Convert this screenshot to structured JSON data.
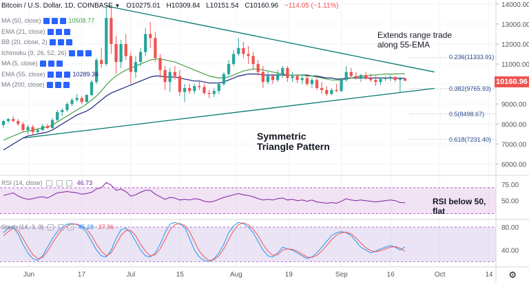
{
  "header": {
    "title": "Bitcoin / U.S. Dollar",
    "interval": "1D",
    "exchange": "COINBASE",
    "open": "O10275.01",
    "high": "H10309.84",
    "low": "L10151.54",
    "close": "C10160.96",
    "change": "−114.05 (−1.11%)"
  },
  "legend": [
    {
      "label": "MA (50, close)",
      "value": "10508.77",
      "has_controls": true
    },
    {
      "label": "EMA (21, close)",
      "value": "",
      "has_controls": true
    },
    {
      "label": "BB (20, close, 2)",
      "value": "",
      "has_controls": true
    },
    {
      "label": "Ichimoku (9, 26, 52, 26)",
      "value": "",
      "has_controls": true
    },
    {
      "label": "MA (5, close)",
      "value": "",
      "has_controls": true
    },
    {
      "label": "EMA (55, close)",
      "value": "10289.36",
      "has_controls": true
    },
    {
      "label": "MA (200, close)",
      "value": "",
      "has_controls": true
    }
  ],
  "rsi_legend": {
    "label": "RSI (14, close)",
    "value": "46.73"
  },
  "stoch_legend": {
    "label": "Stoch (14, 3, 3)",
    "value_k": "45.28",
    "value_d": "37.96"
  },
  "last_price_tag": "10160.96",
  "annotations": {
    "range_note": [
      "Extends range trade",
      "along 55-EMA"
    ],
    "pattern_note": [
      "Symmetric",
      "Triangle Pattern"
    ],
    "rsi_note": [
      "RSI below 50,",
      "flat"
    ]
  },
  "fib_levels": [
    {
      "label": "0.236(11333.91)",
      "price": 11333.91
    },
    {
      "label": "0.382(9765.93)",
      "price": 9765.93
    },
    {
      "label": "0.5(8498.67)",
      "price": 8498.67
    },
    {
      "label": "0.618(7231.40)",
      "price": 7231.4
    }
  ],
  "colors": {
    "up": "#26a69a",
    "down": "#ef5350",
    "ema55": "#1a237e",
    "ma50": "#43a047",
    "trendline": "#00796b",
    "rsi_line": "#7b1fa2",
    "rsi_band": "#e1bee7",
    "stoch_k": "#2196f3",
    "stoch_d": "#ef5350",
    "stoch_band": "#d1c4e9",
    "fib": "#2a4c8e",
    "price_tag": "#ef5350"
  },
  "chart_data": [
    {
      "type": "candlestick",
      "title": "Bitcoin / U.S. Dollar, 1D, COINBASE",
      "x_tick_labels": [
        "Jun",
        "17",
        "Jul",
        "15",
        "Aug",
        "19",
        "Sep",
        "16",
        "Oct",
        "14"
      ],
      "y_tick_labels": [
        "14000.00",
        "13000.00",
        "12000.00",
        "11000.00",
        "10000.00",
        "9000.00",
        "8000.00",
        "7000.00",
        "6000.00"
      ],
      "ylim": [
        5500,
        14200
      ],
      "candles": [
        {
          "o": 7950,
          "h": 8200,
          "l": 7800,
          "c": 8150
        },
        {
          "o": 8150,
          "h": 8300,
          "l": 8050,
          "c": 8250
        },
        {
          "o": 8250,
          "h": 8400,
          "l": 8100,
          "c": 8150
        },
        {
          "o": 8150,
          "h": 8250,
          "l": 7900,
          "c": 8000
        },
        {
          "o": 8000,
          "h": 8100,
          "l": 7600,
          "c": 7700
        },
        {
          "o": 7700,
          "h": 7950,
          "l": 7500,
          "c": 7850
        },
        {
          "o": 7850,
          "h": 7950,
          "l": 7450,
          "c": 7600
        },
        {
          "o": 7600,
          "h": 7800,
          "l": 7500,
          "c": 7700
        },
        {
          "o": 7700,
          "h": 8000,
          "l": 7650,
          "c": 7900
        },
        {
          "o": 7900,
          "h": 8000,
          "l": 7750,
          "c": 7800
        },
        {
          "o": 7800,
          "h": 8300,
          "l": 7750,
          "c": 8200
        },
        {
          "o": 8200,
          "h": 8700,
          "l": 8100,
          "c": 8600
        },
        {
          "o": 8600,
          "h": 8800,
          "l": 8400,
          "c": 8700
        },
        {
          "o": 8700,
          "h": 9100,
          "l": 8600,
          "c": 9000
        },
        {
          "o": 9000,
          "h": 9300,
          "l": 8900,
          "c": 9200
        },
        {
          "o": 9200,
          "h": 9500,
          "l": 9100,
          "c": 9300
        },
        {
          "o": 9300,
          "h": 9400,
          "l": 9000,
          "c": 9100
        },
        {
          "o": 9100,
          "h": 9500,
          "l": 9050,
          "c": 9450
        },
        {
          "o": 9450,
          "h": 10200,
          "l": 9400,
          "c": 10100
        },
        {
          "o": 10100,
          "h": 11300,
          "l": 10000,
          "c": 11200
        },
        {
          "o": 11200,
          "h": 11800,
          "l": 10800,
          "c": 11000
        },
        {
          "o": 11000,
          "h": 13800,
          "l": 10900,
          "c": 13300
        },
        {
          "o": 13300,
          "h": 13900,
          "l": 11500,
          "c": 12000
        },
        {
          "o": 12000,
          "h": 12400,
          "l": 10500,
          "c": 11100
        },
        {
          "o": 11100,
          "h": 12200,
          "l": 10800,
          "c": 12000
        },
        {
          "o": 12000,
          "h": 12500,
          "l": 11200,
          "c": 11400
        },
        {
          "o": 11400,
          "h": 11600,
          "l": 10000,
          "c": 10600
        },
        {
          "o": 10600,
          "h": 11400,
          "l": 10300,
          "c": 11100
        },
        {
          "o": 11100,
          "h": 11800,
          "l": 10900,
          "c": 11600
        },
        {
          "o": 11600,
          "h": 12800,
          "l": 11400,
          "c": 12500
        },
        {
          "o": 12500,
          "h": 13100,
          "l": 11800,
          "c": 12300
        },
        {
          "o": 12300,
          "h": 12600,
          "l": 11100,
          "c": 11300
        },
        {
          "o": 11300,
          "h": 11500,
          "l": 10300,
          "c": 10700
        },
        {
          "o": 10700,
          "h": 10900,
          "l": 9700,
          "c": 10100
        },
        {
          "o": 10100,
          "h": 10800,
          "l": 9600,
          "c": 10600
        },
        {
          "o": 10600,
          "h": 10900,
          "l": 10200,
          "c": 10400
        },
        {
          "o": 10400,
          "h": 10700,
          "l": 9400,
          "c": 9600
        },
        {
          "o": 9600,
          "h": 10000,
          "l": 9100,
          "c": 9800
        },
        {
          "o": 9800,
          "h": 10000,
          "l": 9500,
          "c": 9650
        },
        {
          "o": 9650,
          "h": 10000,
          "l": 9500,
          "c": 9900
        },
        {
          "o": 9900,
          "h": 10200,
          "l": 9700,
          "c": 9850
        },
        {
          "o": 9850,
          "h": 10000,
          "l": 9450,
          "c": 9550
        },
        {
          "o": 9550,
          "h": 9700,
          "l": 9300,
          "c": 9500
        },
        {
          "o": 9500,
          "h": 9800,
          "l": 9350,
          "c": 9650
        },
        {
          "o": 9650,
          "h": 10100,
          "l": 9500,
          "c": 10000
        },
        {
          "o": 10000,
          "h": 10600,
          "l": 9900,
          "c": 10500
        },
        {
          "o": 10500,
          "h": 11200,
          "l": 10400,
          "c": 11000
        },
        {
          "o": 11000,
          "h": 11700,
          "l": 10900,
          "c": 11500
        },
        {
          "o": 11500,
          "h": 12300,
          "l": 11400,
          "c": 11800
        },
        {
          "o": 11800,
          "h": 12100,
          "l": 11300,
          "c": 11500
        },
        {
          "o": 11500,
          "h": 11900,
          "l": 11000,
          "c": 11400
        },
        {
          "o": 11400,
          "h": 11600,
          "l": 10700,
          "c": 11000
        },
        {
          "o": 11000,
          "h": 11200,
          "l": 10400,
          "c": 10600
        },
        {
          "o": 10600,
          "h": 10900,
          "l": 9800,
          "c": 10100
        },
        {
          "o": 10100,
          "h": 10600,
          "l": 10000,
          "c": 10400
        },
        {
          "o": 10400,
          "h": 10500,
          "l": 10000,
          "c": 10200
        },
        {
          "o": 10200,
          "h": 10700,
          "l": 10100,
          "c": 10500
        },
        {
          "o": 10500,
          "h": 10900,
          "l": 10300,
          "c": 10800
        },
        {
          "o": 10800,
          "h": 10900,
          "l": 10100,
          "c": 10300
        },
        {
          "o": 10300,
          "h": 10600,
          "l": 10100,
          "c": 10400
        },
        {
          "o": 10400,
          "h": 10500,
          "l": 10050,
          "c": 10200
        },
        {
          "o": 10200,
          "h": 10500,
          "l": 10000,
          "c": 10300
        },
        {
          "o": 10300,
          "h": 10400,
          "l": 9900,
          "c": 10000
        },
        {
          "o": 10000,
          "h": 10300,
          "l": 9800,
          "c": 10200
        },
        {
          "o": 10200,
          "h": 10300,
          "l": 9700,
          "c": 9800
        },
        {
          "o": 9800,
          "h": 10100,
          "l": 9500,
          "c": 9700
        },
        {
          "o": 9700,
          "h": 9900,
          "l": 9400,
          "c": 9500
        },
        {
          "o": 9500,
          "h": 9800,
          "l": 9450,
          "c": 9700
        },
        {
          "o": 9700,
          "h": 10000,
          "l": 9600,
          "c": 9650
        },
        {
          "o": 9650,
          "h": 10300,
          "l": 9600,
          "c": 10200
        },
        {
          "o": 10200,
          "h": 10900,
          "l": 10100,
          "c": 10600
        },
        {
          "o": 10600,
          "h": 10800,
          "l": 10300,
          "c": 10400
        },
        {
          "o": 10400,
          "h": 10600,
          "l": 10200,
          "c": 10300
        },
        {
          "o": 10300,
          "h": 10500,
          "l": 10100,
          "c": 10450
        },
        {
          "o": 10450,
          "h": 10600,
          "l": 10200,
          "c": 10300
        },
        {
          "o": 10300,
          "h": 10500,
          "l": 10100,
          "c": 10200
        },
        {
          "o": 10200,
          "h": 10400,
          "l": 9900,
          "c": 10100
        },
        {
          "o": 10100,
          "h": 10300,
          "l": 9950,
          "c": 10250
        },
        {
          "o": 10250,
          "h": 10400,
          "l": 10150,
          "c": 10300
        },
        {
          "o": 10300,
          "h": 10450,
          "l": 10150,
          "c": 10350
        },
        {
          "o": 10350,
          "h": 10400,
          "l": 10100,
          "c": 10200
        },
        {
          "o": 10200,
          "h": 10350,
          "l": 9600,
          "c": 10275
        },
        {
          "o": 10275,
          "h": 10310,
          "l": 10150,
          "c": 10160
        }
      ],
      "series": [
        {
          "values": [
            6700,
            6850,
            7000,
            7150,
            7300,
            7400,
            7450,
            7500,
            7550,
            7600,
            7700,
            7850,
            8000,
            8150,
            8300,
            8450,
            8550,
            8650,
            8800,
            9000,
            9200,
            9400,
            9550,
            9650,
            9750,
            9850,
            9950,
            10050,
            10150,
            10250,
            10350,
            10400,
            10400,
            10350,
            10350,
            10350,
            10300,
            10250,
            10200,
            10150,
            10150,
            10100,
            10050,
            10050,
            10050,
            10100,
            10200,
            10300,
            10400,
            10450,
            10500,
            10500,
            10500,
            10450,
            10450,
            10450,
            10450,
            10450,
            10450,
            10450,
            10450,
            10450,
            10450,
            10400,
            10400,
            10350,
            10300,
            10300,
            10250,
            10250,
            10300,
            10300,
            10300,
            10300,
            10300,
            10300,
            10300,
            10300,
            10300,
            10300,
            10290,
            10290,
            10289
          ]
        },
        {
          "values": [
            7200,
            7300,
            7400,
            7500,
            7600,
            7650,
            7700,
            7750,
            7800,
            7850,
            7950,
            8100,
            8250,
            8400,
            8550,
            8700,
            8850,
            9000,
            9200,
            9400,
            9650,
            9950,
            10200,
            10400,
            10550,
            10700,
            10800,
            10900,
            11000,
            11100,
            11200,
            11250,
            11250,
            11200,
            11150,
            11100,
            11000,
            10900,
            10800,
            10700,
            10600,
            10500,
            10400,
            10350,
            10300,
            10300,
            10350,
            10450,
            10550,
            10650,
            10700,
            10750,
            10750,
            10700,
            10650,
            10600,
            10550,
            10500,
            10450,
            10450,
            10450,
            10450,
            10400,
            10400,
            10350,
            10300,
            10250,
            10200,
            10200,
            10200,
            10250,
            10300,
            10350,
            10400,
            10400,
            10450,
            10450,
            10480,
            10500,
            10500,
            10505,
            10508,
            10509
          ]
        }
      ],
      "trendlines": [
        {
          "from": [
            21,
            13900
          ],
          "to": [
            88,
            10600
          ]
        },
        {
          "from": [
            4,
            7300
          ],
          "to": [
            88,
            9780
          ]
        }
      ]
    },
    {
      "type": "line",
      "title": "RSI (14, close)",
      "y_tick_labels": [
        "75.00",
        "50.00"
      ],
      "ylim": [
        22,
        88
      ],
      "band": [
        30,
        70
      ],
      "series": [
        {
          "values": [
            58,
            60,
            62,
            57,
            54,
            52,
            53,
            55,
            56,
            54,
            58,
            62,
            63,
            64,
            63,
            62,
            60,
            61,
            63,
            68,
            70,
            78,
            74,
            66,
            68,
            64,
            57,
            59,
            63,
            66,
            66,
            60,
            56,
            52,
            55,
            54,
            51,
            52,
            51,
            53,
            52,
            49,
            48,
            49,
            52,
            55,
            57,
            59,
            61,
            59,
            58,
            56,
            53,
            51,
            52,
            51,
            53,
            54,
            51,
            52,
            50,
            51,
            49,
            51,
            48,
            47,
            46,
            47,
            46,
            49,
            53,
            51,
            50,
            51,
            50,
            49,
            48,
            49,
            50,
            51,
            50,
            47,
            46.73
          ]
        }
      ]
    },
    {
      "type": "line",
      "title": "Stoch (14, 3, 3)",
      "y_tick_labels": [
        "80.00",
        "40.00"
      ],
      "ylim": [
        12,
        92
      ],
      "band": [
        20,
        80
      ],
      "series": [
        {
          "name": "%K",
          "values": [
            70,
            78,
            80,
            68,
            50,
            35,
            25,
            22,
            30,
            45,
            60,
            72,
            80,
            85,
            86,
            84,
            80,
            70,
            55,
            40,
            30,
            28,
            40,
            60,
            75,
            78,
            70,
            55,
            40,
            30,
            28,
            35,
            50,
            70,
            85,
            88,
            85,
            80,
            60,
            40,
            28,
            22,
            20,
            25,
            35,
            50,
            70,
            82,
            88,
            86,
            80,
            70,
            55,
            40,
            30,
            28,
            35,
            45,
            42,
            40,
            35,
            30,
            25,
            28,
            35,
            45,
            55,
            65,
            70,
            72,
            70,
            65,
            55,
            45,
            40,
            35,
            38,
            42,
            45,
            48,
            45,
            40,
            45.28
          ]
        },
        {
          "name": "%D",
          "values": [
            65,
            72,
            78,
            74,
            60,
            45,
            32,
            25,
            27,
            38,
            52,
            65,
            76,
            82,
            85,
            85,
            82,
            76,
            65,
            50,
            38,
            30,
            35,
            50,
            65,
            74,
            74,
            65,
            50,
            38,
            30,
            32,
            42,
            58,
            75,
            84,
            86,
            83,
            72,
            55,
            38,
            28,
            22,
            23,
            30,
            42,
            58,
            74,
            84,
            87,
            84,
            76,
            65,
            50,
            38,
            31,
            32,
            40,
            42,
            41,
            38,
            33,
            28,
            27,
            31,
            38,
            48,
            58,
            66,
            70,
            71,
            68,
            61,
            52,
            44,
            39,
            37,
            39,
            42,
            45,
            46,
            43,
            37.96
          ]
        }
      ]
    }
  ]
}
